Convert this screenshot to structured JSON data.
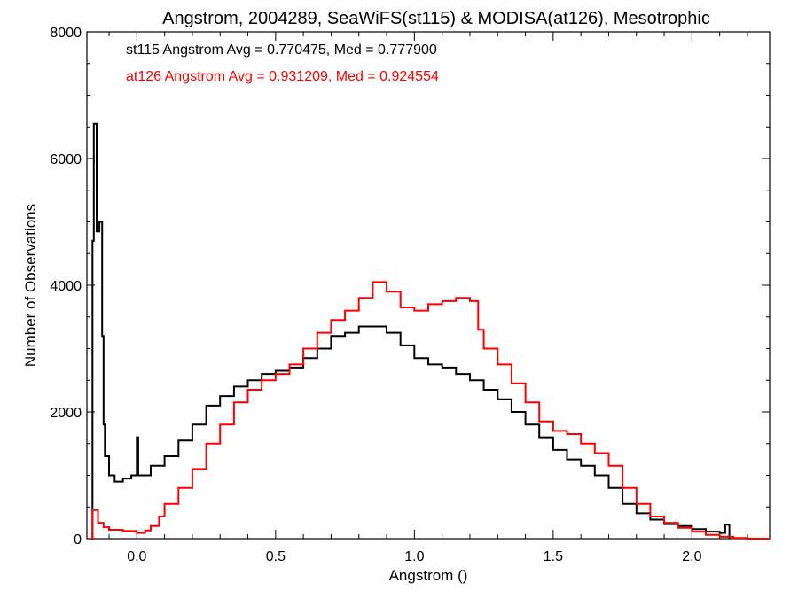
{
  "chart_data": {
    "type": "line",
    "title": "Angstrom, 2004289, SeaWiFS(st115) & MODISA(at126), Mesotrophic",
    "xlabel": "Angstrom ()",
    "ylabel": "Number of Observations",
    "xlim": [
      -0.18,
      2.28
    ],
    "ylim": [
      0,
      8000
    ],
    "x_ticks": [
      0.0,
      0.5,
      1.0,
      1.5,
      2.0
    ],
    "x_tick_labels": [
      "0.0",
      "0.5",
      "1.0",
      "1.5",
      "2.0"
    ],
    "y_ticks": [
      0,
      2000,
      4000,
      6000,
      8000
    ],
    "y_tick_labels": [
      "0",
      "2000",
      "4000",
      "6000",
      "8000"
    ],
    "grid": false,
    "annotations": [
      {
        "text": "st115 Angstrom Avg = 0.770475, Med = 0.777900",
        "color": "#000000"
      },
      {
        "text": "at126 Angstrom Avg = 0.931209, Med = 0.924554",
        "color": "#ff0000"
      }
    ],
    "series": [
      {
        "color": "#000000",
        "style": "step",
        "points": [
          [
            -0.17,
            0
          ],
          [
            -0.16,
            4700
          ],
          [
            -0.155,
            6550
          ],
          [
            -0.145,
            4850
          ],
          [
            -0.135,
            5000
          ],
          [
            -0.125,
            3200
          ],
          [
            -0.12,
            1800
          ],
          [
            -0.115,
            1300
          ],
          [
            -0.1,
            1000
          ],
          [
            -0.08,
            900
          ],
          [
            -0.05,
            950
          ],
          [
            -0.02,
            1000
          ],
          [
            0.0,
            1600
          ],
          [
            0.005,
            1000
          ],
          [
            0.05,
            1150
          ],
          [
            0.1,
            1300
          ],
          [
            0.15,
            1550
          ],
          [
            0.2,
            1800
          ],
          [
            0.25,
            2100
          ],
          [
            0.3,
            2250
          ],
          [
            0.35,
            2400
          ],
          [
            0.4,
            2500
          ],
          [
            0.45,
            2600
          ],
          [
            0.5,
            2650
          ],
          [
            0.55,
            2700
          ],
          [
            0.6,
            2850
          ],
          [
            0.65,
            3000
          ],
          [
            0.7,
            3200
          ],
          [
            0.75,
            3250
          ],
          [
            0.8,
            3350
          ],
          [
            0.85,
            3350
          ],
          [
            0.9,
            3250
          ],
          [
            0.95,
            3050
          ],
          [
            1.0,
            2850
          ],
          [
            1.05,
            2750
          ],
          [
            1.1,
            2700
          ],
          [
            1.15,
            2600
          ],
          [
            1.2,
            2500
          ],
          [
            1.25,
            2350
          ],
          [
            1.3,
            2200
          ],
          [
            1.35,
            2000
          ],
          [
            1.4,
            1800
          ],
          [
            1.45,
            1600
          ],
          [
            1.5,
            1400
          ],
          [
            1.55,
            1250
          ],
          [
            1.6,
            1150
          ],
          [
            1.65,
            1000
          ],
          [
            1.7,
            800
          ],
          [
            1.75,
            550
          ],
          [
            1.8,
            400
          ],
          [
            1.85,
            300
          ],
          [
            1.9,
            230
          ],
          [
            1.95,
            200
          ],
          [
            2.0,
            150
          ],
          [
            2.05,
            110
          ],
          [
            2.1,
            90
          ],
          [
            2.12,
            220
          ],
          [
            2.135,
            0
          ]
        ]
      },
      {
        "color": "#ff0000",
        "style": "step",
        "points": [
          [
            -0.17,
            0
          ],
          [
            -0.16,
            450
          ],
          [
            -0.14,
            250
          ],
          [
            -0.12,
            180
          ],
          [
            -0.1,
            140
          ],
          [
            -0.05,
            120
          ],
          [
            0.0,
            90
          ],
          [
            0.03,
            130
          ],
          [
            0.05,
            200
          ],
          [
            0.08,
            350
          ],
          [
            0.1,
            550
          ],
          [
            0.15,
            800
          ],
          [
            0.2,
            1100
          ],
          [
            0.25,
            1500
          ],
          [
            0.3,
            1800
          ],
          [
            0.35,
            2150
          ],
          [
            0.4,
            2350
          ],
          [
            0.45,
            2500
          ],
          [
            0.5,
            2600
          ],
          [
            0.55,
            2750
          ],
          [
            0.6,
            3000
          ],
          [
            0.65,
            3250
          ],
          [
            0.7,
            3450
          ],
          [
            0.75,
            3600
          ],
          [
            0.8,
            3800
          ],
          [
            0.85,
            4050
          ],
          [
            0.9,
            3900
          ],
          [
            0.95,
            3650
          ],
          [
            1.0,
            3600
          ],
          [
            1.05,
            3700
          ],
          [
            1.1,
            3750
          ],
          [
            1.15,
            3800
          ],
          [
            1.2,
            3750
          ],
          [
            1.23,
            3300
          ],
          [
            1.25,
            3000
          ],
          [
            1.3,
            2750
          ],
          [
            1.35,
            2450
          ],
          [
            1.4,
            2150
          ],
          [
            1.45,
            1850
          ],
          [
            1.5,
            1700
          ],
          [
            1.55,
            1650
          ],
          [
            1.6,
            1500
          ],
          [
            1.65,
            1350
          ],
          [
            1.7,
            1150
          ],
          [
            1.75,
            800
          ],
          [
            1.8,
            550
          ],
          [
            1.85,
            350
          ],
          [
            1.9,
            250
          ],
          [
            1.95,
            170
          ],
          [
            2.0,
            110
          ],
          [
            2.05,
            60
          ],
          [
            2.1,
            30
          ],
          [
            2.15,
            10
          ],
          [
            2.2,
            0
          ],
          [
            2.28,
            0
          ]
        ]
      }
    ]
  }
}
